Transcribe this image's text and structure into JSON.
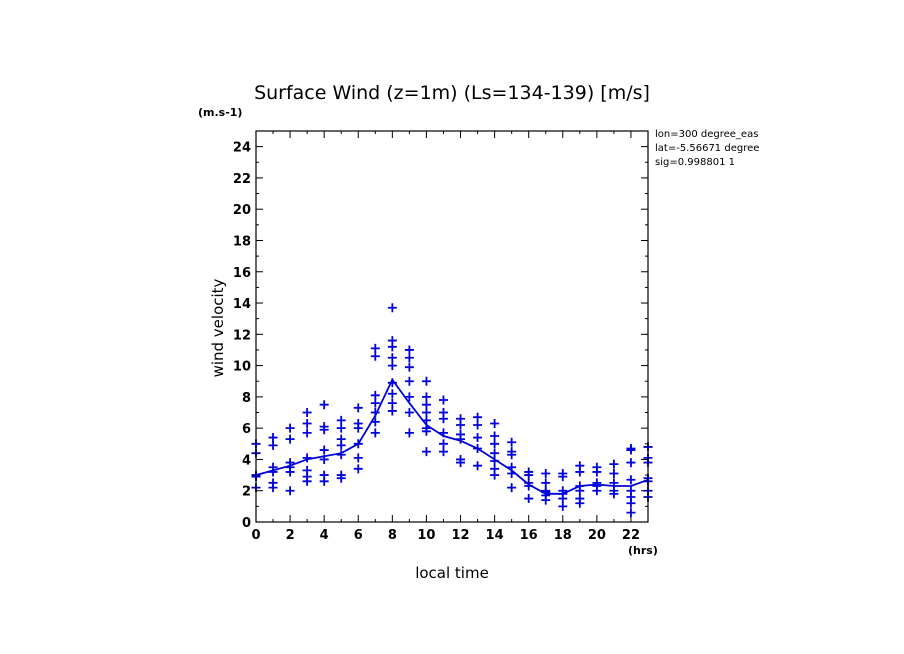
{
  "chart_data": {
    "type": "scatter",
    "title": "Surface Wind (z=1m) (Ls=134-139) [m/s]",
    "y_unit": "(m.s-1)",
    "x_unit": "(hrs)",
    "xlabel": "local time",
    "ylabel": "wind velocity",
    "xlim": [
      0,
      23
    ],
    "ylim": [
      0,
      25
    ],
    "x_ticks": [
      0,
      2,
      4,
      6,
      8,
      10,
      12,
      14,
      16,
      18,
      20,
      22
    ],
    "y_ticks": [
      0,
      2,
      4,
      6,
      8,
      10,
      12,
      14,
      16,
      18,
      20,
      22,
      24
    ],
    "info": [
      "lon=300 degree_eas",
      "lat=-5.56671 degree",
      "sig=0.998801 1"
    ],
    "color": "#0000dd",
    "mean": {
      "name": "mean",
      "x": [
        0,
        1,
        2,
        3,
        4,
        5,
        6,
        7,
        8,
        9,
        10,
        11,
        12,
        13,
        14,
        15,
        16,
        17,
        18,
        19,
        20,
        21,
        22,
        23
      ],
      "y": [
        3.0,
        3.3,
        3.6,
        4.0,
        4.2,
        4.4,
        5.0,
        6.8,
        9.1,
        7.6,
        6.2,
        5.5,
        5.2,
        4.7,
        4.0,
        3.3,
        2.4,
        1.8,
        1.8,
        2.3,
        2.4,
        2.3,
        2.3,
        2.7
      ]
    },
    "samples": [
      {
        "x": 0,
        "y": [
          5.0,
          4.4,
          3.0,
          2.2,
          2.9
        ]
      },
      {
        "x": 1,
        "y": [
          5.4,
          4.9,
          3.5,
          2.5,
          2.2,
          3.2
        ]
      },
      {
        "x": 2,
        "y": [
          6.0,
          5.3,
          3.8,
          3.2,
          2.0,
          3.5
        ]
      },
      {
        "x": 3,
        "y": [
          7.0,
          6.3,
          5.7,
          4.1,
          3.3,
          2.9,
          2.6
        ]
      },
      {
        "x": 4,
        "y": [
          7.5,
          6.1,
          5.9,
          4.6,
          4.0,
          3.0,
          2.6
        ]
      },
      {
        "x": 5,
        "y": [
          6.5,
          6.0,
          5.3,
          4.9,
          4.3,
          3.0,
          2.8
        ]
      },
      {
        "x": 6,
        "y": [
          7.3,
          6.3,
          6.0,
          5.0,
          4.1,
          3.4
        ]
      },
      {
        "x": 7,
        "y": [
          11.1,
          10.6,
          8.1,
          7.6,
          7.0,
          6.4,
          5.7
        ]
      },
      {
        "x": 8,
        "y": [
          13.7,
          11.6,
          11.2,
          10.5,
          10.0,
          8.9,
          8.2,
          7.6,
          7.1
        ]
      },
      {
        "x": 9,
        "y": [
          11.0,
          10.5,
          9.9,
          9.0,
          8.0,
          7.0,
          5.7
        ]
      },
      {
        "x": 10,
        "y": [
          9.0,
          8.0,
          7.5,
          7.0,
          6.5,
          6.0,
          5.8,
          4.5
        ]
      },
      {
        "x": 11,
        "y": [
          7.8,
          7.0,
          6.6,
          5.7,
          5.0,
          4.5
        ]
      },
      {
        "x": 12,
        "y": [
          6.6,
          6.2,
          5.6,
          5.3,
          4.0,
          3.8
        ]
      },
      {
        "x": 13,
        "y": [
          6.7,
          6.2,
          5.4,
          4.7,
          3.6
        ]
      },
      {
        "x": 14,
        "y": [
          6.3,
          5.5,
          5.0,
          4.4,
          3.9,
          3.4,
          3.0
        ]
      },
      {
        "x": 15,
        "y": [
          5.1,
          4.5,
          4.3,
          3.5,
          3.1,
          2.2
        ]
      },
      {
        "x": 16,
        "y": [
          3.2,
          3.0,
          2.5,
          2.3,
          1.5
        ]
      },
      {
        "x": 17,
        "y": [
          3.1,
          2.5,
          2.0,
          1.9,
          1.7,
          1.4
        ]
      },
      {
        "x": 18,
        "y": [
          3.1,
          2.9,
          2.0,
          1.8,
          1.5,
          1.0
        ]
      },
      {
        "x": 19,
        "y": [
          3.6,
          3.2,
          2.3,
          2.0,
          1.5,
          1.2
        ]
      },
      {
        "x": 20,
        "y": [
          3.5,
          3.2,
          2.5,
          2.3,
          2.0
        ]
      },
      {
        "x": 21,
        "y": [
          3.7,
          3.1,
          2.5,
          2.0,
          1.8
        ]
      },
      {
        "x": 22,
        "y": [
          4.7,
          4.6,
          3.8,
          2.7,
          2.0,
          1.6,
          1.2,
          0.6
        ]
      },
      {
        "x": 23,
        "y": [
          4.8,
          4.1,
          3.8,
          2.8,
          2.6,
          2.0,
          1.6
        ]
      }
    ]
  }
}
